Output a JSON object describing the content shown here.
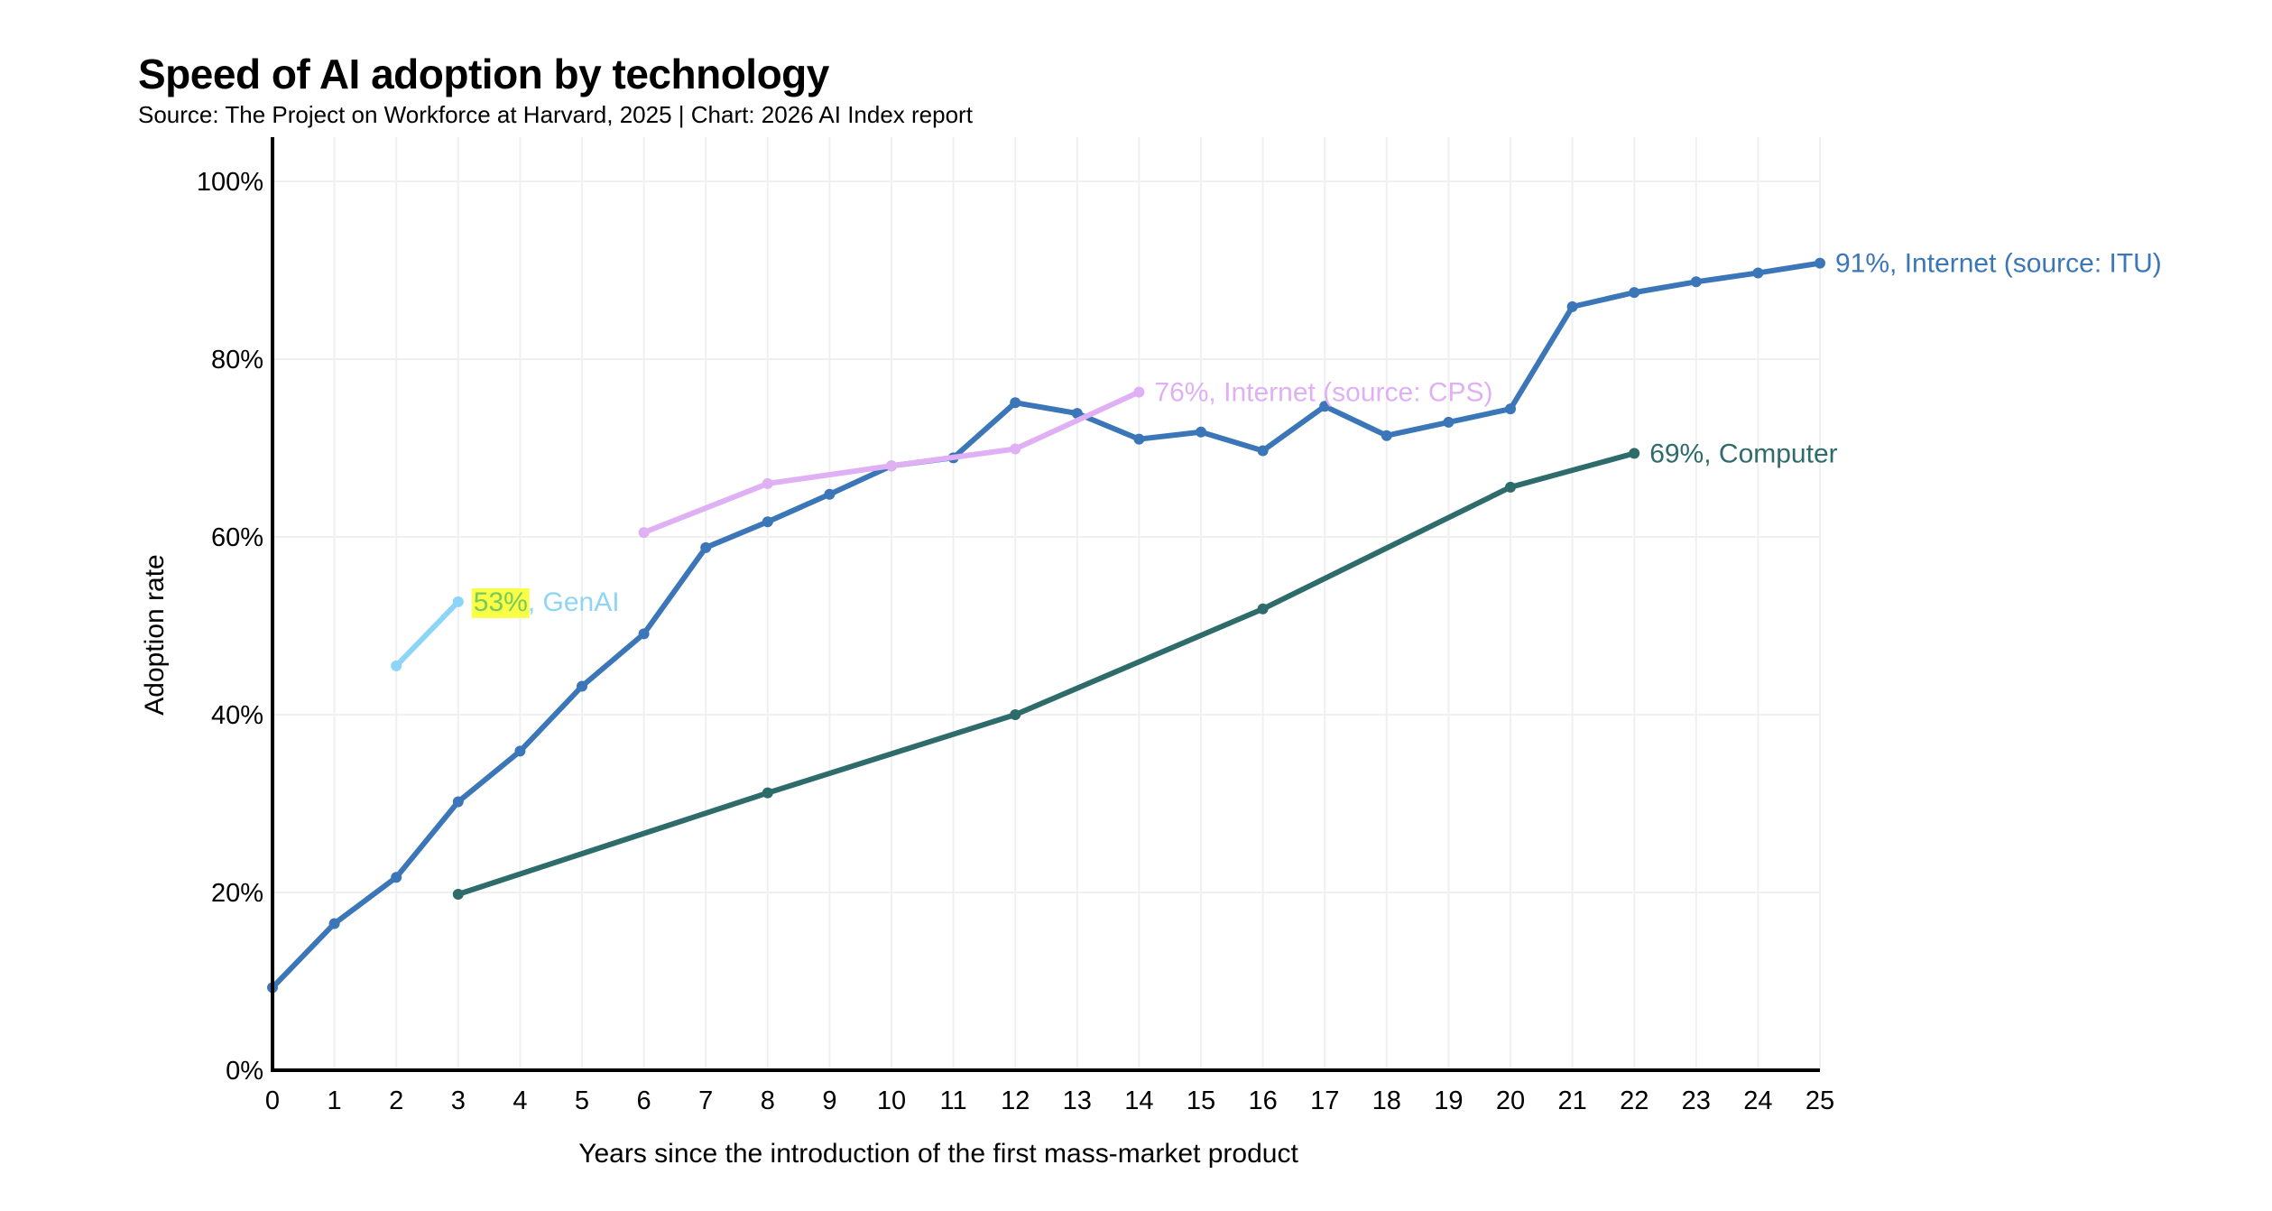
{
  "header": {
    "title": "Speed of AI adoption by technology",
    "subtitle": "Source: The Project on Workforce at Harvard, 2025 | Chart: 2026 AI Index report"
  },
  "chart_data": {
    "type": "line",
    "title": "Speed of AI adoption by technology",
    "subtitle": "Source: The Project on Workforce at Harvard, 2025 | Chart: 2026 AI Index report",
    "xlabel": "Years since the introduction of the first mass-market product",
    "ylabel": "Adoption rate",
    "xlim": [
      0,
      25
    ],
    "ylim": [
      0,
      100
    ],
    "x_ticks": [
      "0",
      "1",
      "2",
      "3",
      "4",
      "5",
      "6",
      "7",
      "8",
      "9",
      "10",
      "11",
      "12",
      "13",
      "14",
      "15",
      "16",
      "17",
      "18",
      "19",
      "20",
      "21",
      "22",
      "23",
      "24",
      "25"
    ],
    "y_ticks": [
      {
        "value": 0,
        "label": "0%"
      },
      {
        "value": 20,
        "label": "20%"
      },
      {
        "value": 40,
        "label": "40%"
      },
      {
        "value": 60,
        "label": "60%"
      },
      {
        "value": 80,
        "label": "80%"
      },
      {
        "value": 100,
        "label": "100%"
      }
    ],
    "grid": true,
    "legend": "inline end-of-line labels",
    "series": [
      {
        "name": "Internet (source: ITU)",
        "color": "#3b76b8",
        "end_label": "91%, Internet (source: ITU)",
        "x": [
          0,
          1,
          2,
          3,
          4,
          5,
          6,
          7,
          8,
          9,
          10,
          11,
          12,
          13,
          14,
          15,
          16,
          17,
          18,
          19,
          20,
          21,
          22,
          23,
          24,
          25
        ],
        "y": [
          9.3,
          16.5,
          21.7,
          30.2,
          35.9,
          43.2,
          49.1,
          58.8,
          61.7,
          64.8,
          68.0,
          68.9,
          75.1,
          73.9,
          71.0,
          71.8,
          69.7,
          74.7,
          71.4,
          72.9,
          74.4,
          85.9,
          87.5,
          88.7,
          89.7,
          90.8
        ]
      },
      {
        "name": "Internet (source: CPS)",
        "color": "#e0b0f5",
        "end_label": "76%, Internet (source: CPS)",
        "x": [
          6,
          8,
          10,
          12,
          14
        ],
        "y": [
          60.5,
          66.0,
          68.0,
          69.9,
          76.3
        ]
      },
      {
        "name": "Computer",
        "color": "#2e6b6b",
        "end_label": "69%, Computer",
        "x": [
          3,
          8,
          12,
          16,
          20,
          22
        ],
        "y": [
          19.8,
          31.2,
          40.0,
          51.9,
          65.6,
          69.4
        ]
      },
      {
        "name": "GenAI",
        "color": "#8dd5f7",
        "end_label_highlight": "53%",
        "end_label_rest": ", GenAI",
        "highlight_color": "#f9ff47",
        "highlight_text_color": "#7ac95a",
        "x": [
          2,
          3
        ],
        "y": [
          45.5,
          52.7
        ]
      }
    ]
  }
}
